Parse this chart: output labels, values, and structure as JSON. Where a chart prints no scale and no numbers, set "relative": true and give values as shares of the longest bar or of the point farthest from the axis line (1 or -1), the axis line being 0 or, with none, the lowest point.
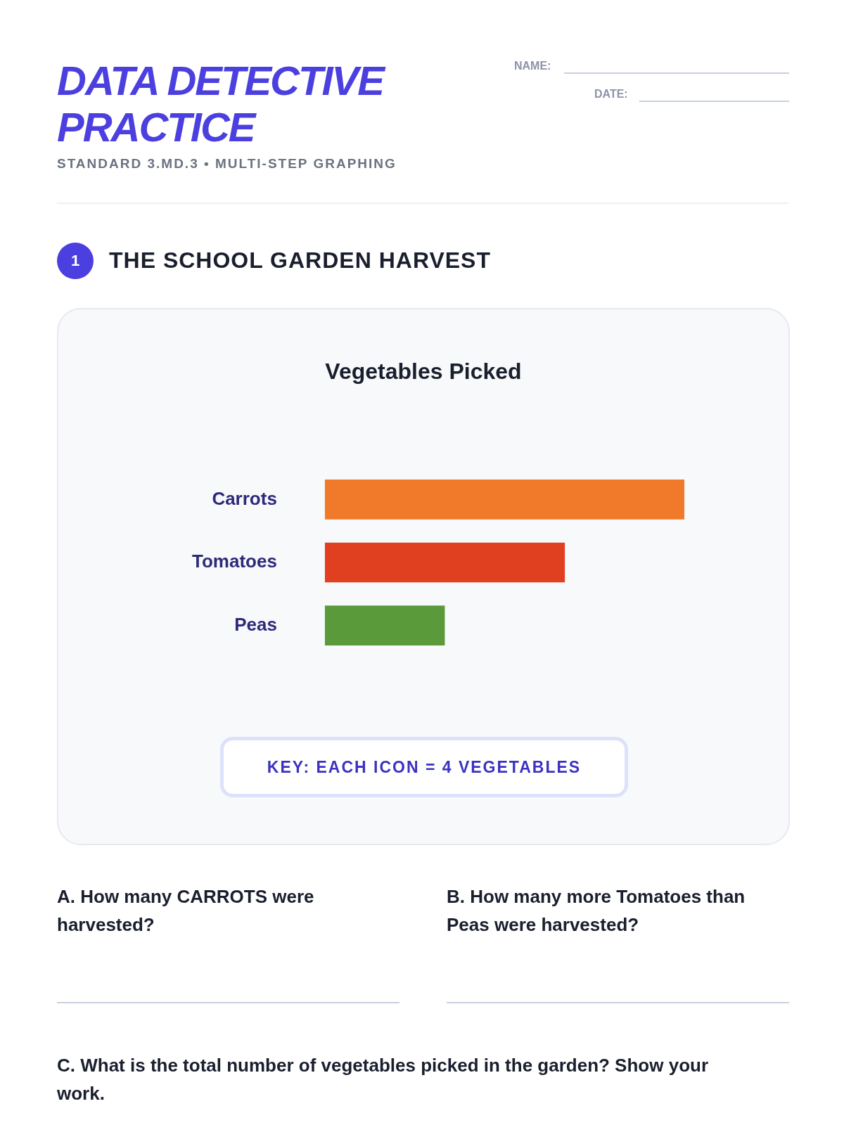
{
  "chart_data": {
    "type": "bar",
    "orientation": "horizontal",
    "relative": true,
    "title": "Vegetables Picked",
    "categories": [
      "Carrots",
      "Tomatoes",
      "Peas"
    ],
    "values": [
      1,
      0.667,
      0.333
    ],
    "colors": [
      "#f07a2a",
      "#e0401f",
      "#5a9a3a"
    ],
    "legend": false,
    "annotations": [
      "DATA DETECTIVE PRACTICE",
      "STANDARD 3.MD.3 • MULTI-STEP GRAPHING",
      "NAME:",
      "DATE:",
      "1",
      "THE SCHOOL GARDEN HARVEST",
      "KEY: EACH ICON = 4 VEGETABLES",
      "A. How many CARROTS were harvested?",
      "B. How many more Tomatoes than Peas were harvested?",
      "C. What is the total number of vegetables picked in the garden? Show your work."
    ]
  }
}
